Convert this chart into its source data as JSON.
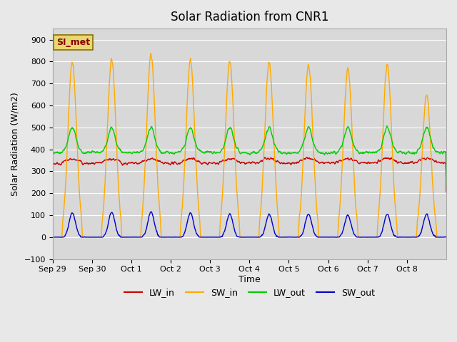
{
  "title": "Solar Radiation from CNR1",
  "xlabel": "Time",
  "ylabel": "Solar Radiation (W/m2)",
  "ylim": [
    -100,
    950
  ],
  "yticks": [
    -100,
    0,
    100,
    200,
    300,
    400,
    500,
    600,
    700,
    800,
    900
  ],
  "bg_color": "#e8e8e8",
  "plot_bg_color": "#d8d8d8",
  "colors": {
    "LW_in": "#cc0000",
    "SW_in": "#ffaa00",
    "LW_out": "#00cc00",
    "SW_out": "#0000cc"
  },
  "annotation_text": "SI_met",
  "annotation_color": "#8b0000",
  "annotation_bg": "#e8d870",
  "x_tick_labels": [
    "Sep 29",
    "Sep 30",
    "Oct 1",
    "Oct 2",
    "Oct 3",
    "Oct 4",
    "Oct 5",
    "Oct 6",
    "Oct 7",
    "Oct 8"
  ],
  "x_tick_positions": [
    0,
    1,
    2,
    3,
    4,
    5,
    6,
    7,
    8,
    9
  ],
  "n_days": 10,
  "seed": 42,
  "peak_heights_SW_in": [
    800,
    810,
    830,
    805,
    800,
    795,
    785,
    770,
    785,
    650
  ],
  "sw_out_peaks": [
    110,
    115,
    115,
    110,
    105,
    105,
    105,
    100,
    105,
    105
  ]
}
